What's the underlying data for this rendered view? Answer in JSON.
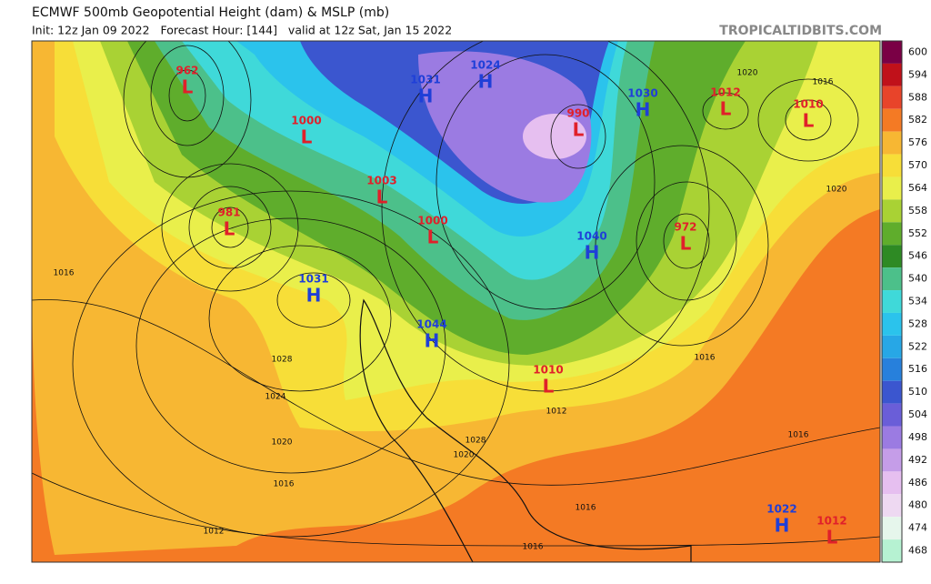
{
  "header": {
    "title": "ECMWF 500mb Geopotential Height (dam) & MSLP (mb)",
    "subtitle": "Init: 12z Jan 09 2022   Forecast Hour: [144]   valid at 12z Sat, Jan 15 2022",
    "brand": "TROPICALTIDBITS.COM"
  },
  "colorbar": {
    "levels": [
      600,
      594,
      588,
      582,
      576,
      570,
      564,
      558,
      552,
      546,
      540,
      534,
      528,
      522,
      516,
      510,
      504,
      498,
      492,
      486,
      480,
      474,
      468
    ],
    "colors": [
      "#7a0045",
      "#c0111a",
      "#e8442a",
      "#f47a24",
      "#f7b733",
      "#f7de38",
      "#e9ef4b",
      "#a9d234",
      "#5fad2c",
      "#2e8a24",
      "#4cc08a",
      "#3fd9d9",
      "#2bc3ec",
      "#27a7e6",
      "#2780dc",
      "#3b56cf",
      "#6a5ed8",
      "#9b7be2",
      "#c59de8",
      "#e6bff0",
      "#eed9f2",
      "#e6f6ec",
      "#b6f2d2"
    ]
  },
  "centers": [
    {
      "letter": "L",
      "value": 962
    },
    {
      "letter": "L",
      "value": 1000
    },
    {
      "letter": "H",
      "value": 1031
    },
    {
      "letter": "H",
      "value": 1024
    },
    {
      "letter": "L",
      "value": 990
    },
    {
      "letter": "H",
      "value": 1030
    },
    {
      "letter": "L",
      "value": 1012
    },
    {
      "letter": "L",
      "value": 1010
    },
    {
      "letter": "L",
      "value": 1003
    },
    {
      "letter": "L",
      "value": 981
    },
    {
      "letter": "L",
      "value": 1000
    },
    {
      "letter": "H",
      "value": 1040
    },
    {
      "letter": "L",
      "value": 972
    },
    {
      "letter": "H",
      "value": 1031
    },
    {
      "letter": "H",
      "value": 1044
    },
    {
      "letter": "L",
      "value": 1010
    },
    {
      "letter": "H",
      "value": 1022
    },
    {
      "letter": "L",
      "value": 1012
    }
  ],
  "isobar_labels": [
    1016,
    1028,
    1024,
    1020,
    1016,
    1012,
    1016,
    1016,
    1020,
    1016,
    1020,
    1016,
    1016,
    1028,
    1020,
    1012
  ]
}
